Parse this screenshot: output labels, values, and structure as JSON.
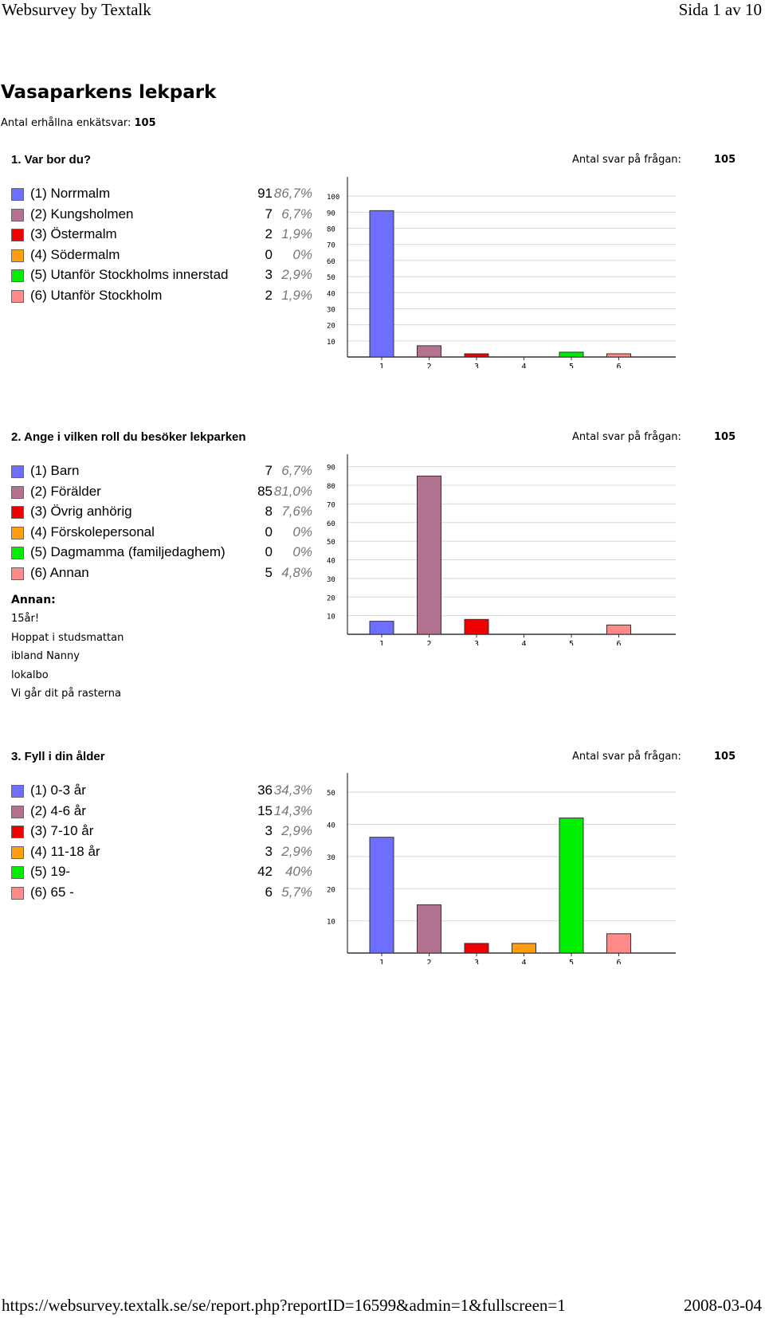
{
  "header": {
    "left": "Websurvey by Textalk",
    "right": "Sida 1 av 10"
  },
  "footer": {
    "left": "https://websurvey.textalk.se/se/report.php?reportID=16599&admin=1&fullscreen=1",
    "right": "2008-03-04"
  },
  "survey": {
    "title": "Vasaparkens lekpark",
    "received_label": "Antal erhållna enkätsvar:",
    "received_value": "105"
  },
  "colors": [
    "#6f6fff",
    "#b3728f",
    "#ee0000",
    "#ff9f10",
    "#00ee00",
    "#ff8a8a"
  ],
  "questions": [
    {
      "title": "1. Var bor du?",
      "count_label": "Antal svar på frågan:",
      "count_value": "105",
      "options": [
        {
          "num": "(1)",
          "label": "Norrmalm",
          "count": "91",
          "pct": "86,7%"
        },
        {
          "num": "(2)",
          "label": "Kungsholmen",
          "count": "7",
          "pct": "6,7%"
        },
        {
          "num": "(3)",
          "label": "Östermalm",
          "count": "2",
          "pct": "1,9%"
        },
        {
          "num": "(4)",
          "label": "Södermalm",
          "count": "0",
          "pct": "0%"
        },
        {
          "num": "(5)",
          "label": "Utanför Stockholms innerstad",
          "count": "3",
          "pct": "2,9%"
        },
        {
          "num": "(6)",
          "label": "Utanför Stockholm",
          "count": "2",
          "pct": "1,9%"
        }
      ]
    },
    {
      "title": "2. Ange i vilken roll du besöker lekparken",
      "count_label": "Antal svar på frågan:",
      "count_value": "105",
      "options": [
        {
          "num": "(1)",
          "label": "Barn",
          "count": "7",
          "pct": "6,7%"
        },
        {
          "num": "(2)",
          "label": "Förälder",
          "count": "85",
          "pct": "81,0%"
        },
        {
          "num": "(3)",
          "label": "Övrig anhörig",
          "count": "8",
          "pct": "7,6%"
        },
        {
          "num": "(4)",
          "label": "Förskolepersonal",
          "count": "0",
          "pct": "0%"
        },
        {
          "num": "(5)",
          "label": "Dagmamma (familjedaghem)",
          "count": "0",
          "pct": "0%"
        },
        {
          "num": "(6)",
          "label": "Annan",
          "count": "5",
          "pct": "4,8%"
        }
      ],
      "annan": {
        "title": "Annan:",
        "items": [
          "15år!",
          "Hoppat i studsmattan",
          "ibland Nanny",
          "lokalbo",
          "Vi går dit på rasterna"
        ]
      }
    },
    {
      "title": "3. Fyll i din ålder",
      "count_label": "Antal svar på frågan:",
      "count_value": "105",
      "options": [
        {
          "num": "(1)",
          "label": "0-3 år",
          "count": "36",
          "pct": "34,3%"
        },
        {
          "num": "(2)",
          "label": "4-6 år",
          "count": "15",
          "pct": "14,3%"
        },
        {
          "num": "(3)",
          "label": "7-10 år",
          "count": "3",
          "pct": "2,9%"
        },
        {
          "num": "(4)",
          "label": "11-18 år",
          "count": "3",
          "pct": "2,9%"
        },
        {
          "num": "(5)",
          "label": "19-",
          "count": "42",
          "pct": "40%"
        },
        {
          "num": "(6)",
          "label": "65 -",
          "count": "6",
          "pct": "5,7%"
        }
      ]
    }
  ],
  "chart_data": [
    {
      "type": "bar",
      "categories": [
        "1",
        "2",
        "3",
        "4",
        "5",
        "6"
      ],
      "values": [
        91,
        7,
        2,
        0,
        3,
        2
      ],
      "ylim": [
        0,
        100
      ],
      "yticks": [
        10,
        20,
        30,
        40,
        50,
        60,
        70,
        80,
        90,
        100
      ],
      "grid": true
    },
    {
      "type": "bar",
      "categories": [
        "1",
        "2",
        "3",
        "4",
        "5",
        "6"
      ],
      "values": [
        7,
        85,
        8,
        0,
        0,
        5
      ],
      "ylim": [
        0,
        90
      ],
      "yticks": [
        10,
        20,
        30,
        40,
        50,
        60,
        70,
        80,
        90
      ],
      "grid": true
    },
    {
      "type": "bar",
      "categories": [
        "1",
        "2",
        "3",
        "4",
        "5",
        "6"
      ],
      "values": [
        36,
        15,
        3,
        3,
        42,
        6
      ],
      "ylim": [
        0,
        50
      ],
      "yticks": [
        10,
        20,
        30,
        40,
        50
      ],
      "grid": true
    }
  ]
}
